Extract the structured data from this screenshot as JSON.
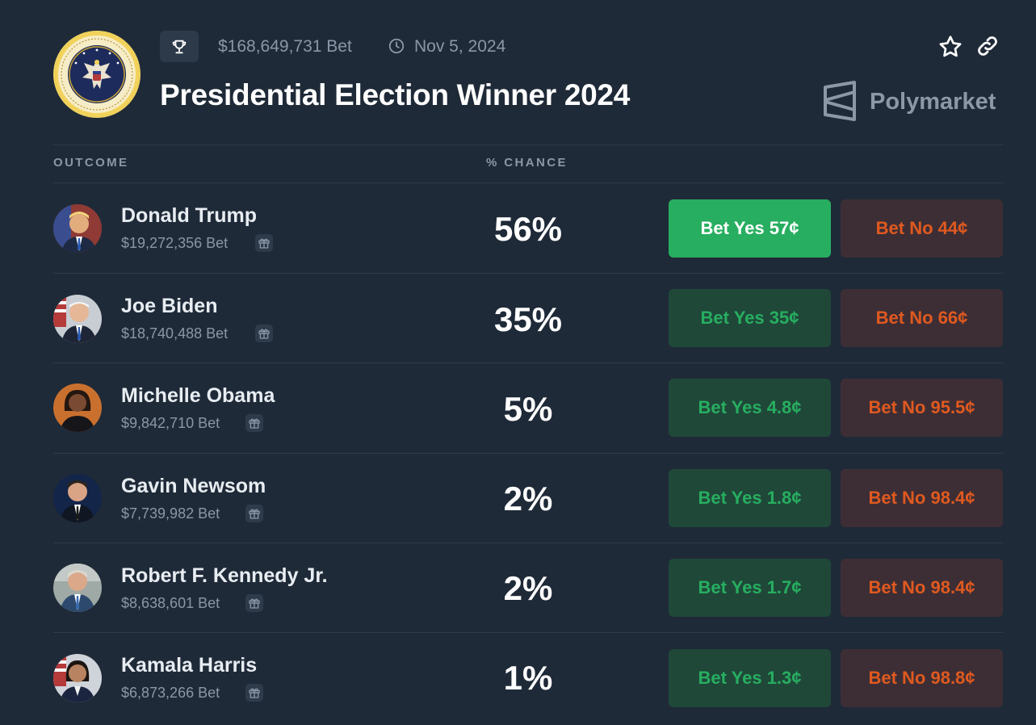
{
  "header": {
    "volume": "$168,649,731 Bet",
    "date": "Nov 5, 2024",
    "title": "Presidential Election Winner 2024",
    "brand": "Polymarket"
  },
  "table": {
    "col_outcome": "OUTCOME",
    "col_chance": "% CHANCE"
  },
  "rows": [
    {
      "name": "Donald Trump",
      "volume": "$19,272,356 Bet",
      "chance": "56%",
      "yes": "Bet Yes 57¢",
      "no": "Bet No 44¢",
      "yes_active": true
    },
    {
      "name": "Joe Biden",
      "volume": "$18,740,488 Bet",
      "chance": "35%",
      "yes": "Bet Yes 35¢",
      "no": "Bet No 66¢",
      "yes_active": false
    },
    {
      "name": "Michelle Obama",
      "volume": "$9,842,710 Bet",
      "chance": "5%",
      "yes": "Bet Yes 4.8¢",
      "no": "Bet No 95.5¢",
      "yes_active": false
    },
    {
      "name": "Gavin Newsom",
      "volume": "$7,739,982 Bet",
      "chance": "2%",
      "yes": "Bet Yes 1.8¢",
      "no": "Bet No 98.4¢",
      "yes_active": false
    },
    {
      "name": "Robert F. Kennedy Jr.",
      "volume": "$8,638,601 Bet",
      "chance": "2%",
      "yes": "Bet Yes 1.7¢",
      "no": "Bet No 98.4¢",
      "yes_active": false
    },
    {
      "name": "Kamala Harris",
      "volume": "$6,873,266 Bet",
      "chance": "1%",
      "yes": "Bet Yes 1.3¢",
      "no": "Bet No 98.8¢",
      "yes_active": false
    }
  ],
  "colors": {
    "background": "#1f2a38",
    "yes_active": "#27ae60",
    "yes_text": "#27ae60",
    "yes_bg": "#1f4839",
    "no_text": "#e0591f",
    "no_bg": "#3d2e35",
    "muted_text": "#8a97a6"
  },
  "icons": {
    "trophy": "trophy-icon",
    "clock": "clock-icon",
    "star": "star-icon",
    "link": "link-icon",
    "gift": "gift-icon",
    "brand": "polymarket-logo"
  }
}
